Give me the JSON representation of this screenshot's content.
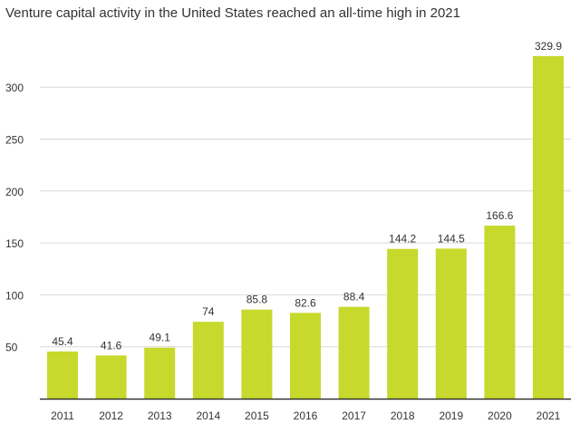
{
  "chart_data": {
    "type": "bar",
    "title": "Venture capital activity in the United States reached an all-time high in 2021",
    "xlabel": "",
    "ylabel": "",
    "categories": [
      "2011",
      "2012",
      "2013",
      "2014",
      "2015",
      "2016",
      "2017",
      "2018",
      "2019",
      "2020",
      "2021"
    ],
    "values": [
      45.4,
      41.6,
      49.1,
      74,
      85.8,
      82.6,
      88.4,
      144.2,
      144.5,
      166.6,
      329.9
    ],
    "value_labels": [
      "45.4",
      "41.6",
      "49.1",
      "74",
      "85.8",
      "82.6",
      "88.4",
      "144.2",
      "144.5",
      "166.6",
      "329.9"
    ],
    "ylim": [
      0,
      330
    ],
    "yticks": [
      50,
      100,
      150,
      200,
      250,
      300
    ],
    "grid": true,
    "legend": "none",
    "bar_color": "#c7d92c",
    "grid_color": "#d9d9d9",
    "axis_color": "#333333",
    "text_color": "#333333"
  }
}
